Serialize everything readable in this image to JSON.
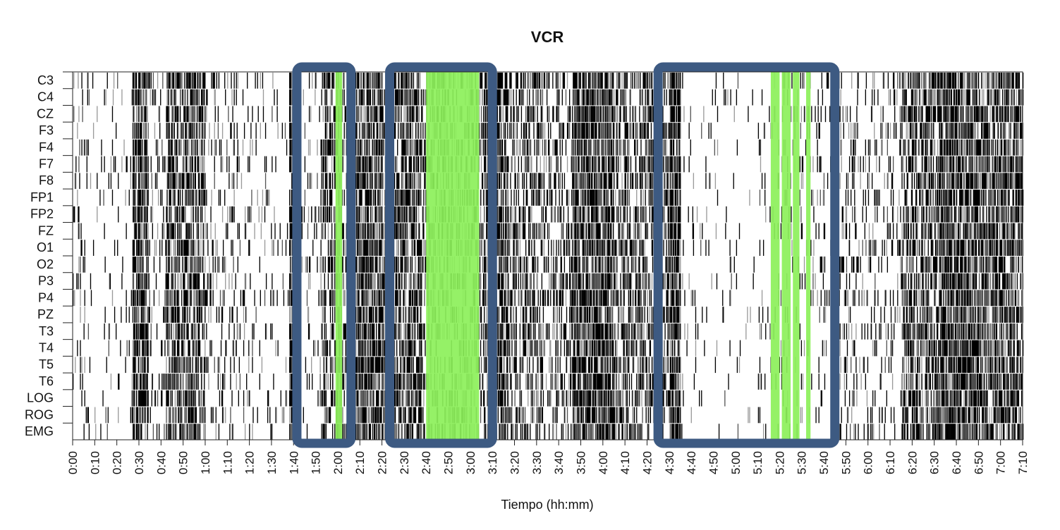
{
  "chart_data": {
    "type": "heatmap",
    "title": "VCR",
    "xlabel": "Tiempo (hh:mm)",
    "ylabel": "",
    "xlim_minutes": [
      0,
      430
    ],
    "channels": [
      "C3",
      "C4",
      "CZ",
      "F3",
      "F4",
      "F7",
      "F8",
      "FP1",
      "FP2",
      "FZ",
      "O1",
      "O2",
      "P3",
      "P4",
      "PZ",
      "T3",
      "T4",
      "T5",
      "T6",
      "LOG",
      "ROG",
      "EMG"
    ],
    "x_tick_labels": [
      "0:00",
      "0:10",
      "0:20",
      "0:30",
      "0:40",
      "0:50",
      "1:00",
      "1:10",
      "1:20",
      "1:30",
      "1:40",
      "1:50",
      "2:00",
      "2:10",
      "2:20",
      "2:30",
      "2:40",
      "2:50",
      "3:00",
      "3:10",
      "3:20",
      "3:30",
      "3:40",
      "3:50",
      "4:00",
      "4:10",
      "4:20",
      "4:30",
      "4:40",
      "4:50",
      "5:00",
      "5:10",
      "5:20",
      "5:30",
      "5:40",
      "5:50",
      "6:00",
      "6:10",
      "6:20",
      "6:30",
      "6:40",
      "6:50",
      "7:00",
      "7:10"
    ],
    "x_tick_minutes": [
      0,
      10,
      20,
      30,
      40,
      50,
      60,
      70,
      80,
      90,
      100,
      110,
      120,
      130,
      140,
      150,
      160,
      170,
      180,
      190,
      200,
      210,
      220,
      230,
      240,
      250,
      260,
      270,
      280,
      290,
      300,
      310,
      320,
      330,
      340,
      350,
      360,
      370,
      380,
      390,
      400,
      410,
      420,
      430
    ],
    "activity_density": [
      {
        "from": 0,
        "to": 7,
        "level": 0.12
      },
      {
        "from": 7,
        "to": 14,
        "level": 0.05
      },
      {
        "from": 14,
        "to": 27,
        "level": 0.08
      },
      {
        "from": 27,
        "to": 34,
        "level": 0.75
      },
      {
        "from": 34,
        "to": 42,
        "level": 0.15
      },
      {
        "from": 42,
        "to": 60,
        "level": 0.6
      },
      {
        "from": 60,
        "to": 75,
        "level": 0.15
      },
      {
        "from": 75,
        "to": 98,
        "level": 0.1
      },
      {
        "from": 98,
        "to": 101,
        "level": 0.8
      },
      {
        "from": 101,
        "to": 112,
        "level": 0.1
      },
      {
        "from": 112,
        "to": 127,
        "level": 0.45
      },
      {
        "from": 127,
        "to": 140,
        "level": 0.75
      },
      {
        "from": 140,
        "to": 148,
        "level": 0.5
      },
      {
        "from": 148,
        "to": 158,
        "level": 0.65
      },
      {
        "from": 158,
        "to": 186,
        "level": 0.35
      },
      {
        "from": 186,
        "to": 197,
        "level": 0.7
      },
      {
        "from": 197,
        "to": 212,
        "level": 0.4
      },
      {
        "from": 212,
        "to": 226,
        "level": 0.3
      },
      {
        "from": 226,
        "to": 245,
        "level": 0.8
      },
      {
        "from": 245,
        "to": 270,
        "level": 0.45
      },
      {
        "from": 270,
        "to": 275,
        "level": 0.9
      },
      {
        "from": 275,
        "to": 310,
        "level": 0.04
      },
      {
        "from": 310,
        "to": 345,
        "level": 0.1
      },
      {
        "from": 345,
        "to": 354,
        "level": 0.25
      },
      {
        "from": 354,
        "to": 375,
        "level": 0.15
      },
      {
        "from": 375,
        "to": 392,
        "level": 0.55
      },
      {
        "from": 392,
        "to": 410,
        "level": 0.8
      },
      {
        "from": 410,
        "to": 430,
        "level": 0.65
      }
    ],
    "highlight_regions": [
      {
        "from": 119,
        "to": 122,
        "color": "#8cf05a"
      },
      {
        "from": 160,
        "to": 184,
        "color": "#8cf05a"
      },
      {
        "from": 316,
        "to": 320,
        "color": "#8cf05a"
      },
      {
        "from": 321,
        "to": 325,
        "color": "#8cf05a"
      },
      {
        "from": 326,
        "to": 329,
        "color": "#8cf05a"
      },
      {
        "from": 332,
        "to": 334,
        "color": "#8cf05a"
      }
    ],
    "boxes": [
      {
        "from": 101.5,
        "to": 126
      },
      {
        "from": 143.5,
        "to": 190
      },
      {
        "from": 265,
        "to": 345
      }
    ],
    "box_color": "#3d5a82",
    "mark_color": "#000000",
    "grid": false
  }
}
